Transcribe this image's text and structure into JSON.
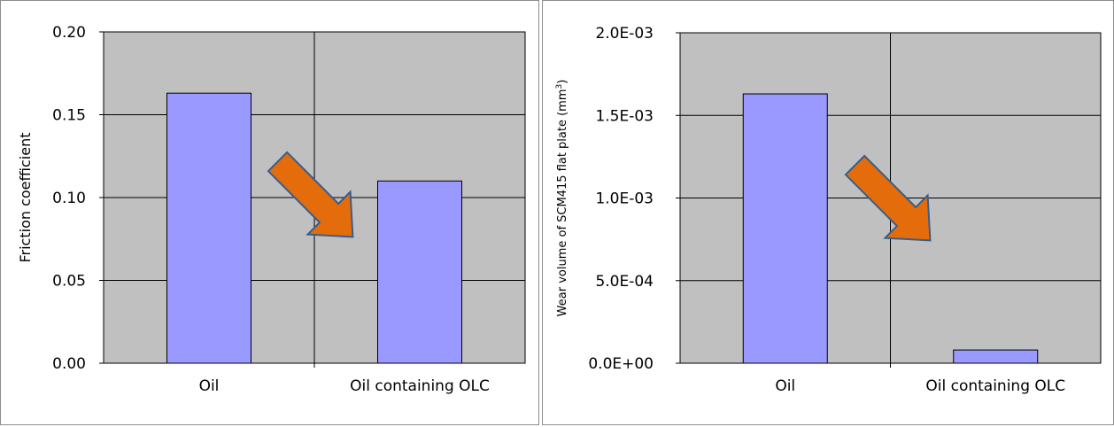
{
  "chart_data": [
    {
      "type": "bar",
      "categories": [
        "Oil",
        "Oil containing OLC"
      ],
      "values": [
        0.163,
        0.11
      ],
      "ylabel": "Friction coefficient",
      "ylim": [
        0,
        0.2
      ],
      "yticks": [
        "0.00",
        "0.05",
        "0.10",
        "0.15",
        "0.20"
      ],
      "ytick_values": [
        0,
        0.05,
        0.1,
        0.15,
        0.2
      ],
      "grid": true,
      "bar_color": "#9999ff",
      "plot_background": "#c0c0c0",
      "annotation": "arrow",
      "arrow_color": "#e46c0a"
    },
    {
      "type": "bar",
      "categories": [
        "Oil",
        "Oil containing OLC"
      ],
      "values": [
        0.00163,
        8e-05
      ],
      "ylabel": "Wear volume of SCM415 flat plate (mm",
      "ylabel_superscript": "3",
      "ylabel_suffix": ")",
      "ylim": [
        0,
        0.002
      ],
      "yticks": [
        "0.0E+00",
        "5.0E-04",
        "1.0E-03",
        "1.5E-03",
        "2.0E-03"
      ],
      "ytick_values": [
        0,
        0.0005,
        0.001,
        0.0015,
        0.002
      ],
      "grid": true,
      "bar_color": "#9999ff",
      "plot_background": "#c0c0c0",
      "annotation": "arrow",
      "arrow_color": "#e46c0a"
    }
  ]
}
